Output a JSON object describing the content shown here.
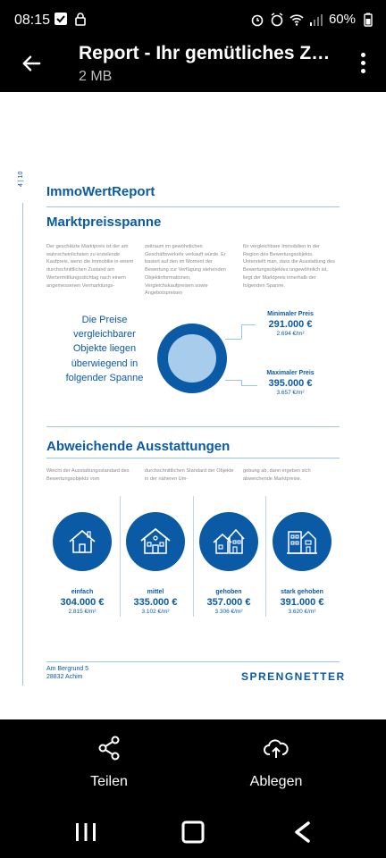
{
  "status": {
    "time": "08:15",
    "battery": "60%"
  },
  "app_bar": {
    "title": "Report - Ihr gemütliches Zuh...",
    "subtitle": "2 MB"
  },
  "doc": {
    "page_number": "4 | 10",
    "brand": "ImmoWertReport",
    "section1_title": "Marktpreisspanne",
    "col1": "Der geschätzte Marktpreis ist der am wahrscheinlichsten zu erzielende Kaufpreis, wenn die Immobilie in einem durchschnittlichen Zustand am Wertermittlungsstichtag nach einem angemessenen Vermarktungs-",
    "col2": "zeitraum im gewöhnlichen Geschäftsverkehr verkauft würde. Er basiert auf den im Moment der Bewertung zur Verfügung stehenden Objektinformationen, Vergleichskaufpreisen sowie Angebotspreisen",
    "col3": "für vergleichbare Immobilien in der Region des Bewertungsobjekts. Unterstellt man, dass die Ausstattung des Bewertungsobjektes ungewöhnlich ist, liegt der Marktpreis innerhalb der folgenden Spanne.",
    "prices_note": "Die Preise vergleichbarer Objekte liegen überwiegend in folgender Spanne",
    "min_label": "Minimaler Preis",
    "min_price": "291.000 €",
    "min_sqm": "2.694 €/m²",
    "max_label": "Maximaler Preis",
    "max_price": "395.000 €",
    "max_sqm": "3.657 €/m²",
    "section2_title": "Abweichende Ausstattungen",
    "col4": "Weicht der Ausstattungsstandard des Bewertungsobjekts vom",
    "col5": "durchschnittlichen Standard der Objekte in der näheren Um-",
    "col6": "gebung ab, dann ergeben sich abweichende Marktpreise.",
    "standards": [
      {
        "label": "einfach",
        "price": "304.000 €",
        "sqm": "2.815 €/m²",
        "icon": "house-simple-icon"
      },
      {
        "label": "mittel",
        "price": "335.000 €",
        "sqm": "3.102 €/m²",
        "icon": "house-medium-icon"
      },
      {
        "label": "gehoben",
        "price": "357.000 €",
        "sqm": "3.306 €/m²",
        "icon": "house-upscale-icon"
      },
      {
        "label": "stark gehoben",
        "price": "391.000 €",
        "sqm": "3.620 €/m²",
        "icon": "house-luxury-icon"
      }
    ],
    "footer_street": "Am Bergrund 5",
    "footer_city": "28832 Achim",
    "footer_logo": "SPRENGNETTER"
  },
  "actions": {
    "share": "Teilen",
    "save": "Ablegen"
  },
  "colors": {
    "accent": "#0a5aa5",
    "light_accent": "#a8cdec"
  }
}
